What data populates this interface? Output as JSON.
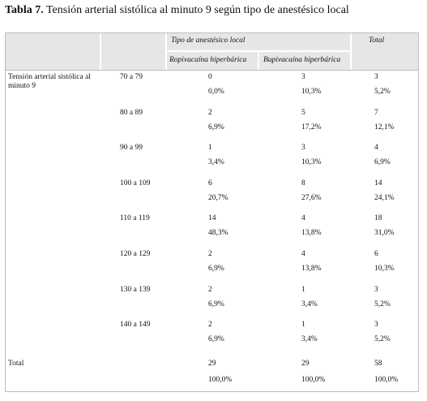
{
  "title": {
    "bold": "Tabla 7.",
    "text": "Tensión arterial sistólica al minuto 9 según tipo de anestésico local"
  },
  "header": {
    "group": "Tipo de anestésico local",
    "total": "Total",
    "col1": "Ropivacaína hiperbárica",
    "col2": "Bupivacaína hiperbárica"
  },
  "row_label": "Tensión arterial sistólica al minuto 9",
  "rows": [
    {
      "range": "70 a 79",
      "c1": "0",
      "p1": "0,0%",
      "c2": "3",
      "p2": "10,3%",
      "ct": "3",
      "pt": "5,2%"
    },
    {
      "range": "80 a 89",
      "c1": "2",
      "p1": "6,9%",
      "c2": "5",
      "p2": "17,2%",
      "ct": "7",
      "pt": "12,1%"
    },
    {
      "range": "90 a 99",
      "c1": "1",
      "p1": "3,4%",
      "c2": "3",
      "p2": "10,3%",
      "ct": "4",
      "pt": "6,9%"
    },
    {
      "range": "100 a 109",
      "c1": "6",
      "p1": "20,7%",
      "c2": "8",
      "p2": "27,6%",
      "ct": "14",
      "pt": "24,1%"
    },
    {
      "range": "110 a 119",
      "c1": "14",
      "p1": "48,3%",
      "c2": "4",
      "p2": "13,8%",
      "ct": "18",
      "pt": "31,0%"
    },
    {
      "range": "120 a 129",
      "c1": "2",
      "p1": "6,9%",
      "c2": "4",
      "p2": "13,8%",
      "ct": "6",
      "pt": "10,3%"
    },
    {
      "range": "130 a 139",
      "c1": "2",
      "p1": "6,9%",
      "c2": "1",
      "p2": "3,4%",
      "ct": "3",
      "pt": "5,2%"
    },
    {
      "range": "140 a 149",
      "c1": "2",
      "p1": "6,9%",
      "c2": "1",
      "p2": "3,4%",
      "ct": "3",
      "pt": "5,2%"
    }
  ],
  "total_row": {
    "label": "Total",
    "c1": "29",
    "p1": "100,0%",
    "c2": "29",
    "p2": "100,0%",
    "ct": "58",
    "pt": "100,0%"
  }
}
